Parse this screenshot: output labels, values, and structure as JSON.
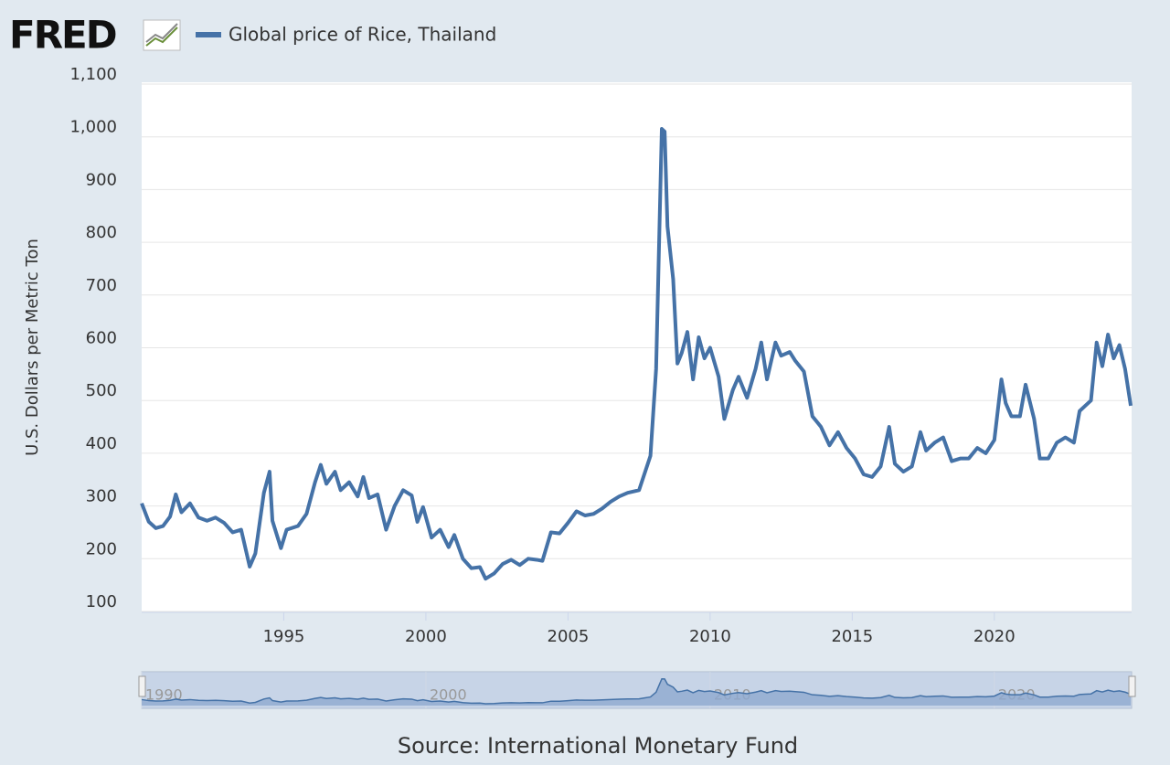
{
  "chart_data": {
    "type": "line",
    "logo": "FRED",
    "title": "Global price of Rice, Thailand",
    "y_label": "U.S. Dollars per Metric Ton",
    "source": "Source: International Monetary Fund",
    "color": "#4572a7",
    "xlim": [
      1990,
      2024.83
    ],
    "xticks": [
      1995,
      2000,
      2005,
      2010,
      2015,
      2020
    ],
    "navigator_ticks": [
      1990,
      2000,
      2010,
      2020
    ],
    "ylim": [
      100,
      1100
    ],
    "yticks": [
      100,
      200,
      300,
      400,
      500,
      600,
      700,
      800,
      900,
      {
        "value": 1000,
        "label": "1,000"
      },
      {
        "value": 1100,
        "label": "1,100"
      }
    ],
    "grid": true,
    "series": [
      {
        "name": "Global price of Rice, Thailand",
        "color": "#4572a7",
        "x": [
          1990.0,
          1990.25,
          1990.5,
          1990.75,
          1991.0,
          1991.2,
          1991.4,
          1991.7,
          1992.0,
          1992.3,
          1992.6,
          1992.9,
          1993.2,
          1993.5,
          1993.8,
          1994.0,
          1994.3,
          1994.5,
          1994.6,
          1994.9,
          1995.1,
          1995.5,
          1995.8,
          1996.1,
          1996.3,
          1996.5,
          1996.8,
          1997.0,
          1997.3,
          1997.6,
          1997.8,
          1998.0,
          1998.3,
          1998.6,
          1998.9,
          1999.2,
          1999.5,
          1999.7,
          1999.9,
          2000.2,
          2000.5,
          2000.8,
          2001.0,
          2001.3,
          2001.6,
          2001.9,
          2002.1,
          2002.4,
          2002.7,
          2003.0,
          2003.3,
          2003.6,
          2003.9,
          2004.1,
          2004.4,
          2004.7,
          2005.0,
          2005.3,
          2005.6,
          2005.9,
          2006.2,
          2006.5,
          2006.8,
          2007.1,
          2007.5,
          2007.9,
          2008.1,
          2008.3,
          2008.4,
          2008.5,
          2008.7,
          2008.85,
          2009.0,
          2009.2,
          2009.4,
          2009.6,
          2009.8,
          2010.0,
          2010.3,
          2010.5,
          2010.8,
          2011.0,
          2011.3,
          2011.6,
          2011.8,
          2012.0,
          2012.3,
          2012.5,
          2012.8,
          2013.0,
          2013.3,
          2013.6,
          2013.9,
          2014.2,
          2014.5,
          2014.8,
          2015.1,
          2015.4,
          2015.7,
          2016.0,
          2016.3,
          2016.5,
          2016.8,
          2017.1,
          2017.4,
          2017.6,
          2017.9,
          2018.2,
          2018.5,
          2018.8,
          2019.1,
          2019.4,
          2019.7,
          2020.0,
          2020.25,
          2020.4,
          2020.6,
          2020.9,
          2021.1,
          2021.4,
          2021.6,
          2021.9,
          2022.2,
          2022.5,
          2022.8,
          2023.0,
          2023.2,
          2023.4,
          2023.6,
          2023.8,
          2024.0,
          2024.2,
          2024.4,
          2024.6,
          2024.8
        ],
        "values": [
          305,
          270,
          258,
          262,
          280,
          322,
          288,
          305,
          278,
          272,
          278,
          268,
          250,
          255,
          185,
          210,
          325,
          365,
          272,
          220,
          255,
          262,
          285,
          345,
          378,
          342,
          365,
          330,
          345,
          318,
          355,
          315,
          322,
          255,
          300,
          330,
          320,
          270,
          298,
          240,
          255,
          222,
          245,
          200,
          182,
          184,
          162,
          172,
          190,
          198,
          188,
          200,
          198,
          196,
          250,
          248,
          268,
          290,
          282,
          285,
          295,
          308,
          318,
          325,
          330,
          395,
          560,
          1015,
          1010,
          830,
          730,
          570,
          590,
          630,
          540,
          620,
          580,
          600,
          545,
          465,
          520,
          545,
          505,
          560,
          610,
          540,
          610,
          585,
          592,
          575,
          555,
          470,
          450,
          415,
          440,
          410,
          390,
          360,
          355,
          375,
          450,
          380,
          365,
          375,
          440,
          405,
          420,
          430,
          385,
          390,
          390,
          410,
          400,
          425,
          540,
          495,
          470,
          470,
          530,
          465,
          390,
          390,
          420,
          430,
          420,
          480,
          490,
          500,
          610,
          565,
          625,
          580,
          605,
          560,
          490
        ]
      }
    ]
  }
}
